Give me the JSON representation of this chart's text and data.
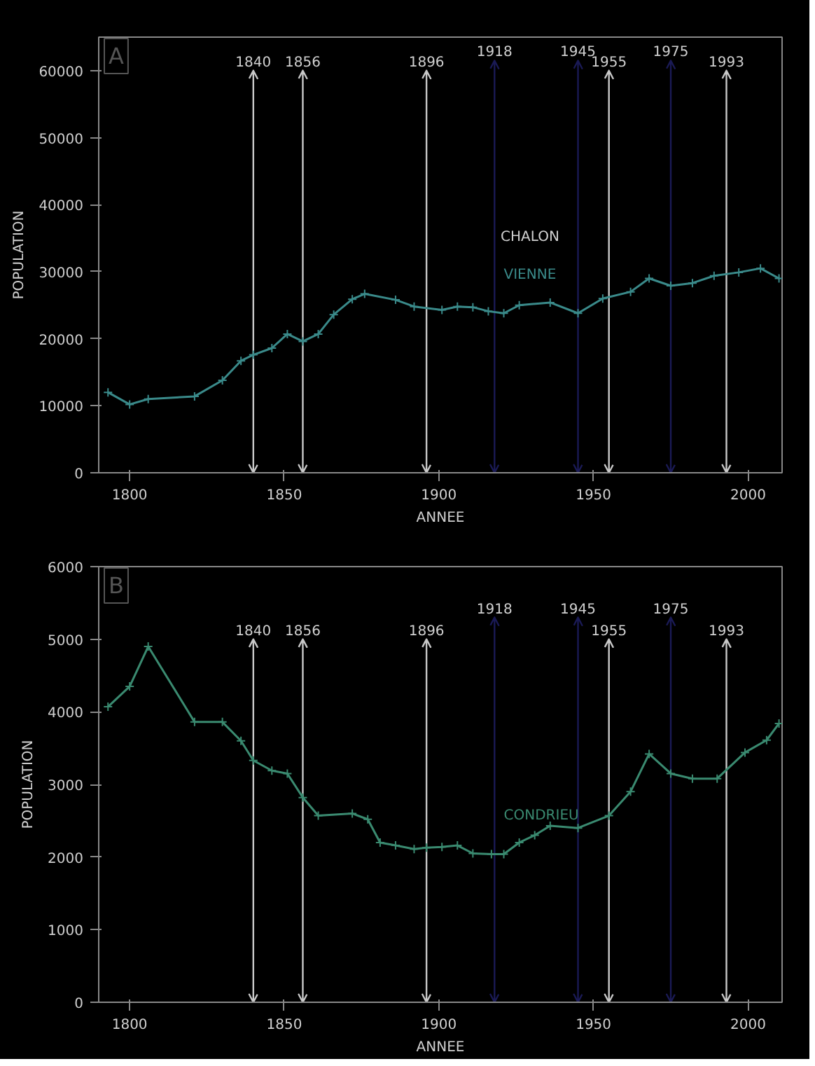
{
  "chart_data": [
    {
      "type": "line",
      "xlabel": "ANNEE",
      "ylabel": "POPULATION",
      "xlim": [
        1790,
        2011
      ],
      "xticks": [
        1800,
        1850,
        1900,
        1950,
        2000
      ],
      "ylim": [
        0,
        65000
      ],
      "yticks": [
        0,
        10000,
        20000,
        30000,
        40000,
        50000,
        60000
      ],
      "grid": false,
      "marker": "cross",
      "line_style": "solid",
      "annotations": [
        "A",
        {
          "text": "CHALON",
          "x": 1920,
          "y": 34000
        }
      ],
      "series": [
        {
          "name": "VIENNE",
          "color": "#3a8a8a",
          "x": [
            1793,
            1800,
            1806,
            1821,
            1830,
            1836,
            1840,
            1846,
            1851,
            1856,
            1861,
            1866,
            1872,
            1876,
            1886,
            1892,
            1901,
            1906,
            1911,
            1916,
            1921,
            1926,
            1936,
            1945,
            1953,
            1962,
            1968,
            1975,
            1982,
            1989,
            1997,
            2004,
            2010
          ],
          "values": [
            12000,
            10200,
            11000,
            11400,
            13800,
            16700,
            17600,
            18600,
            20700,
            19600,
            20700,
            23600,
            25900,
            26700,
            25800,
            24800,
            24300,
            24800,
            24700,
            24100,
            23800,
            25000,
            25400,
            23800,
            26000,
            27000,
            29000,
            27900,
            28300,
            29400,
            29900,
            30500,
            29000
          ]
        }
      ],
      "ref_lines": [
        {
          "axis": "x",
          "value": 1840,
          "label": "1840",
          "color": "#c8c8c8"
        },
        {
          "axis": "x",
          "value": 1856,
          "label": "1856",
          "color": "#c8c8c8"
        },
        {
          "axis": "x",
          "value": 1896,
          "label": "1896",
          "color": "#c8c8c8"
        },
        {
          "axis": "x",
          "value": 1918,
          "label": "1918",
          "color": "#1a1a55"
        },
        {
          "axis": "x",
          "value": 1945,
          "label": "1945",
          "color": "#1a1a55"
        },
        {
          "axis": "x",
          "value": 1955,
          "label": "1955",
          "color": "#c8c8c8"
        },
        {
          "axis": "x",
          "value": 1975,
          "label": "1975",
          "color": "#1a1a55"
        },
        {
          "axis": "x",
          "value": 1993,
          "label": "1993",
          "color": "#c8c8c8"
        }
      ]
    },
    {
      "type": "line",
      "xlabel": "ANNEE",
      "ylabel": "POPULATION",
      "xlim": [
        1790,
        2011
      ],
      "xticks": [
        1800,
        1850,
        1900,
        1950,
        2000
      ],
      "ylim": [
        0,
        6000
      ],
      "yticks": [
        0,
        1000,
        2000,
        3000,
        4000,
        5000,
        6000
      ],
      "grid": false,
      "marker": "cross",
      "line_style": "solid",
      "annotations": [
        "B"
      ],
      "series": [
        {
          "name": "CONDRIEU",
          "color": "#3a8a70",
          "x": [
            1793,
            1800,
            1806,
            1821,
            1830,
            1836,
            1840,
            1846,
            1851,
            1856,
            1861,
            1872,
            1877,
            1881,
            1886,
            1892,
            1896,
            1901,
            1906,
            1911,
            1917,
            1921,
            1926,
            1931,
            1936,
            1945,
            1955,
            1962,
            1968,
            1975,
            1982,
            1990,
            1999,
            2006,
            2010
          ],
          "values": [
            4070,
            4350,
            4900,
            3860,
            3860,
            3600,
            3330,
            3190,
            3150,
            2820,
            2570,
            2600,
            2520,
            2200,
            2160,
            2110,
            2130,
            2140,
            2160,
            2050,
            2040,
            2040,
            2200,
            2300,
            2430,
            2400,
            2570,
            2900,
            3420,
            3150,
            3080,
            3080,
            3440,
            3610,
            3840
          ]
        }
      ],
      "ref_lines": [
        {
          "axis": "x",
          "value": 1840,
          "label": "1840",
          "color": "#c8c8c8"
        },
        {
          "axis": "x",
          "value": 1856,
          "label": "1856",
          "color": "#c8c8c8"
        },
        {
          "axis": "x",
          "value": 1896,
          "label": "1896",
          "color": "#c8c8c8"
        },
        {
          "axis": "x",
          "value": 1918,
          "label": "1918",
          "color": "#1a1a55"
        },
        {
          "axis": "x",
          "value": 1945,
          "label": "1945",
          "color": "#1a1a55"
        },
        {
          "axis": "x",
          "value": 1955,
          "label": "1955",
          "color": "#c8c8c8"
        },
        {
          "axis": "x",
          "value": 1975,
          "label": "1975",
          "color": "#1a1a55"
        },
        {
          "axis": "x",
          "value": 1993,
          "label": "1993",
          "color": "#c8c8c8"
        }
      ]
    }
  ]
}
